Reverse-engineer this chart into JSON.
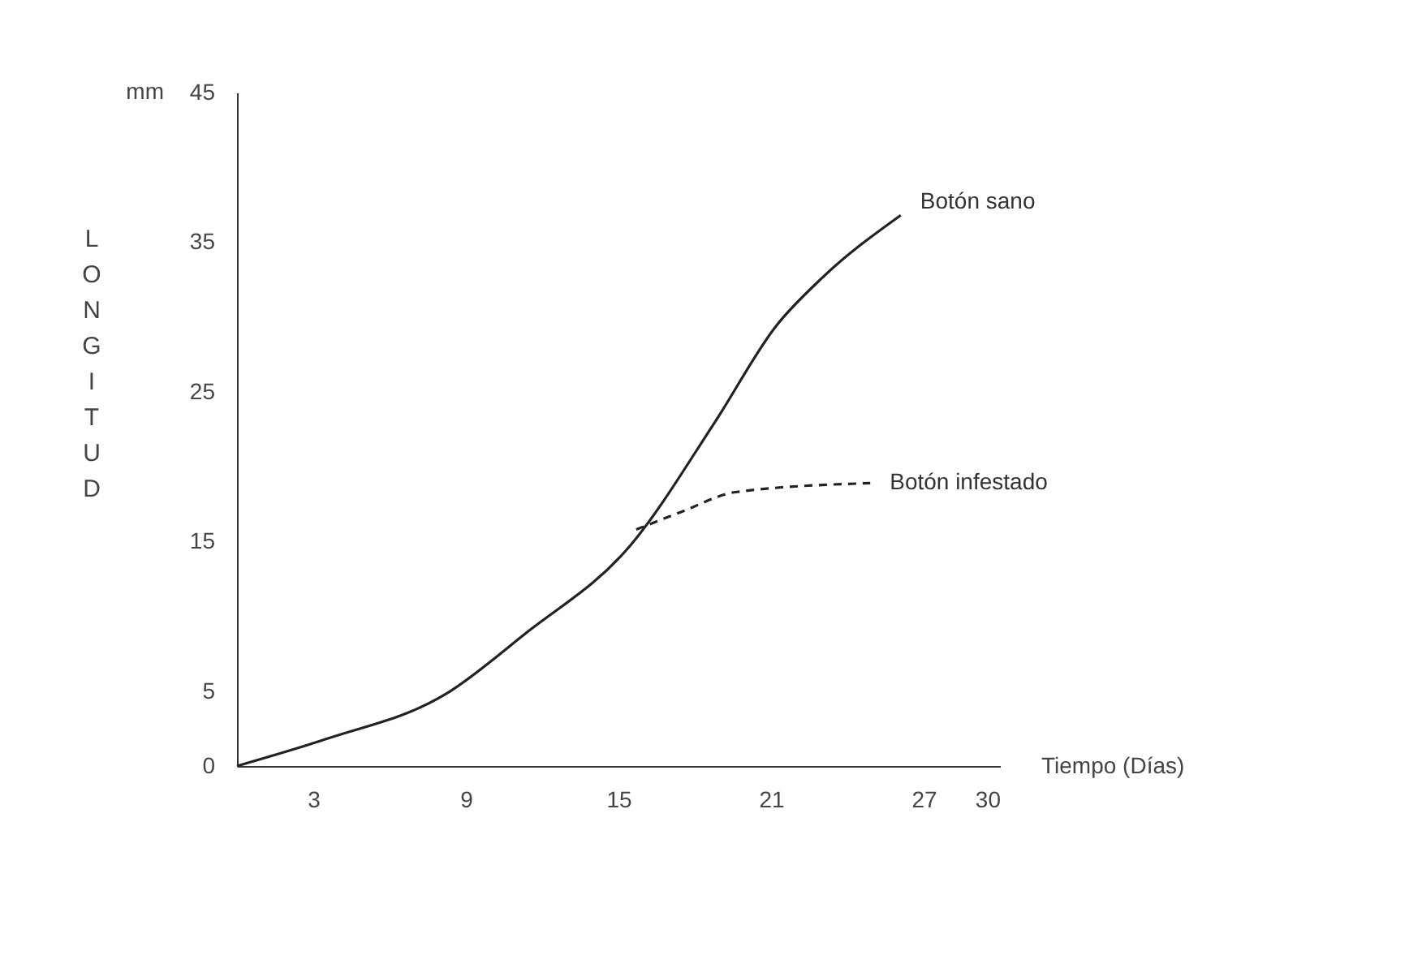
{
  "chart_data": {
    "type": "line",
    "xlabel": "Tiempo (Días)",
    "ylabel": "LONGITUD",
    "annotations": [
      "mm"
    ],
    "x": [
      0,
      3.5,
      8.2,
      11.3,
      15.5,
      18.8,
      21.2,
      23,
      26.1
    ],
    "series": [
      {
        "name": "Botón sano",
        "color": "#222222",
        "line_style": "solid",
        "values": [
          0,
          1.8,
          4.8,
          8.8,
          14.8,
          23,
          29.4,
          32.6,
          36.8
        ]
      },
      {
        "name": "Botón infestado",
        "color": "#222222",
        "line_style": "dashed",
        "x": [
          15.7,
          17.5,
          19.6,
          24.9
        ],
        "values": [
          15.8,
          17,
          18.3,
          18.9
        ]
      }
    ],
    "xlim": [
      0,
      30
    ],
    "xticks": [
      3,
      9,
      15,
      21,
      27,
      30
    ],
    "ylim": [
      0,
      45
    ],
    "yticks": [
      0,
      5,
      15,
      25,
      35,
      45
    ],
    "grid": false,
    "legend": false,
    "marker": "none"
  }
}
